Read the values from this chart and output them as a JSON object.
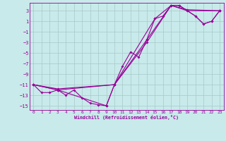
{
  "xlabel": "Windchill (Refroidissement éolien,°C)",
  "background_color": "#c8eaea",
  "grid_color": "#a8c8c8",
  "line_color": "#990099",
  "xlim": [
    -0.5,
    23.5
  ],
  "ylim": [
    -15.8,
    4.5
  ],
  "yticks": [
    3,
    1,
    -1,
    -3,
    -5,
    -7,
    -9,
    -11,
    -13,
    -15
  ],
  "xticks": [
    0,
    1,
    2,
    3,
    4,
    5,
    6,
    7,
    8,
    9,
    10,
    11,
    12,
    13,
    14,
    15,
    16,
    17,
    18,
    19,
    20,
    21,
    22,
    23
  ],
  "series1": [
    [
      0,
      -11
    ],
    [
      1,
      -12.5
    ],
    [
      2,
      -12.5
    ],
    [
      3,
      -12
    ],
    [
      4,
      -13
    ],
    [
      5,
      -12
    ],
    [
      6,
      -13.5
    ],
    [
      7,
      -14.5
    ],
    [
      8,
      -14.8
    ],
    [
      9,
      -15
    ],
    [
      10,
      -11
    ],
    [
      11,
      -7.5
    ],
    [
      12,
      -4.8
    ],
    [
      13,
      -5.8
    ],
    [
      14,
      -2.5
    ],
    [
      15,
      1.5
    ],
    [
      16,
      2
    ],
    [
      17,
      4
    ],
    [
      18,
      4
    ],
    [
      19,
      3
    ],
    [
      20,
      2
    ],
    [
      21,
      0.5
    ],
    [
      22,
      1
    ],
    [
      23,
      3
    ]
  ],
  "series2": [
    [
      0,
      -11
    ],
    [
      3,
      -11.8
    ],
    [
      10,
      -11
    ],
    [
      14,
      -2.5
    ],
    [
      17,
      4
    ],
    [
      18,
      4
    ],
    [
      20,
      2
    ],
    [
      21,
      0.5
    ],
    [
      22,
      1
    ],
    [
      23,
      3
    ]
  ],
  "series3": [
    [
      0,
      -11
    ],
    [
      3,
      -12
    ],
    [
      9,
      -15
    ],
    [
      10,
      -11
    ],
    [
      15,
      1.5
    ],
    [
      17,
      4
    ],
    [
      19,
      3
    ],
    [
      23,
      3
    ]
  ],
  "series4": [
    [
      0,
      -11
    ],
    [
      3,
      -12
    ],
    [
      10,
      -11
    ],
    [
      14,
      -3
    ],
    [
      17,
      4
    ],
    [
      19,
      3.2
    ],
    [
      23,
      3
    ]
  ]
}
